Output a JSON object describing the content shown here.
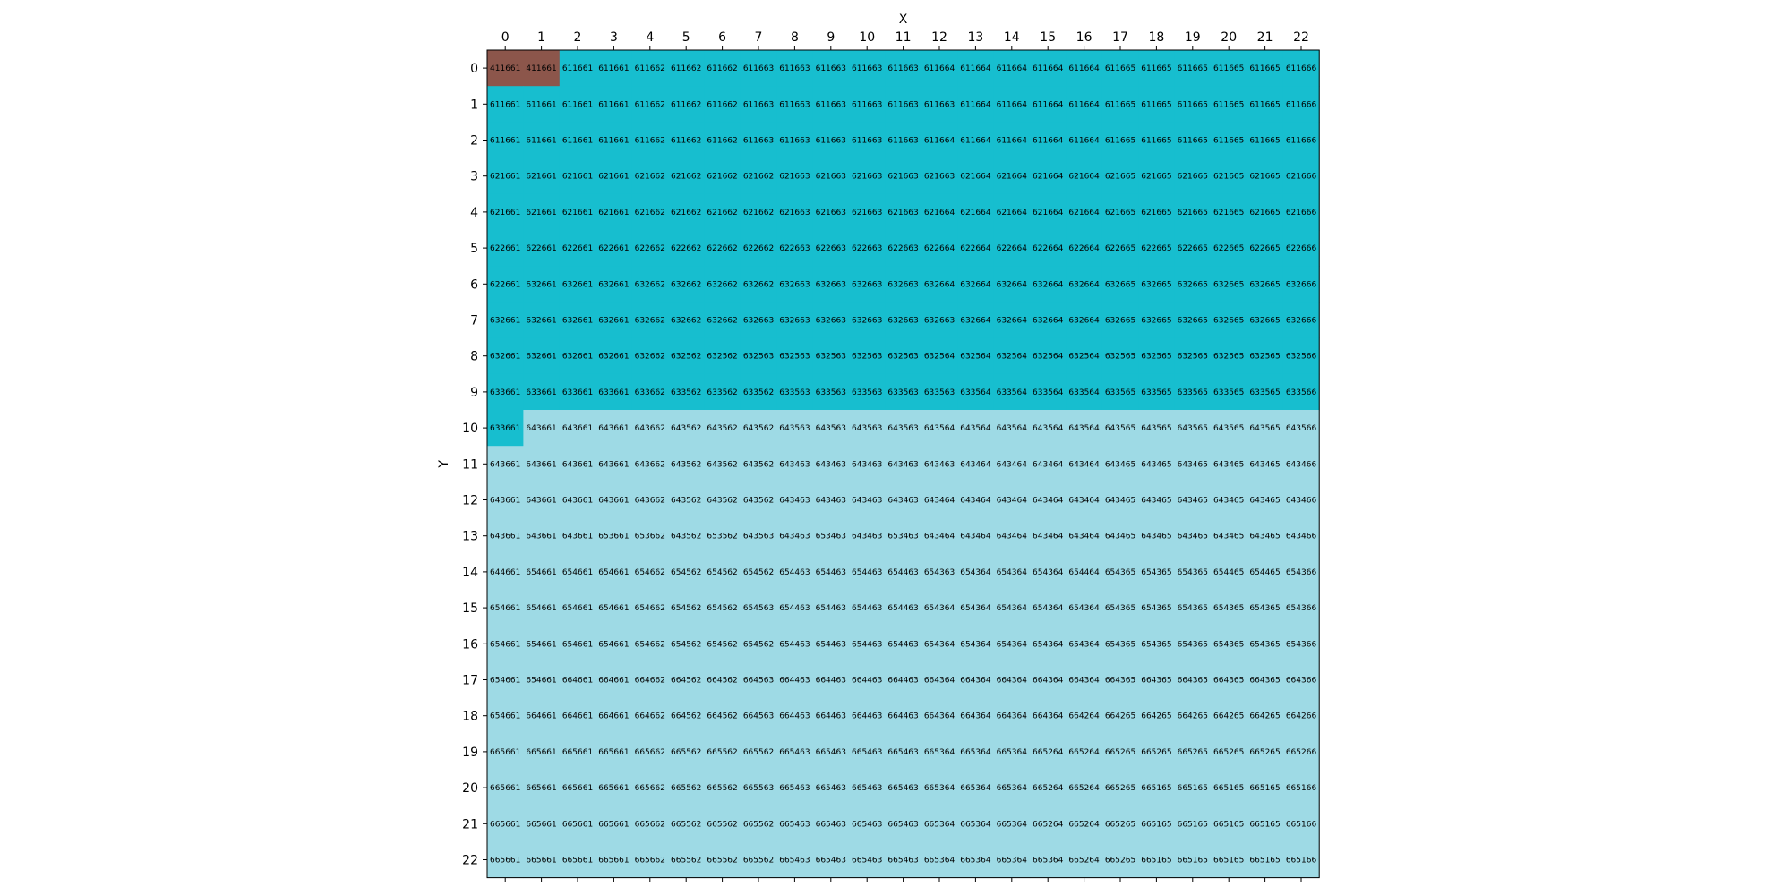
{
  "chart_data": {
    "type": "heatmap",
    "title": "",
    "xlabel": "X",
    "ylabel": "Y",
    "x_ticks": [
      0,
      1,
      2,
      3,
      4,
      5,
      6,
      7,
      8,
      9,
      10,
      11,
      12,
      13,
      14,
      15,
      16,
      17,
      18,
      19,
      20,
      21,
      22
    ],
    "y_ticks": [
      0,
      1,
      2,
      3,
      4,
      5,
      6,
      7,
      8,
      9,
      10,
      11,
      12,
      13,
      14,
      15,
      16,
      17,
      18,
      19,
      20,
      21,
      22
    ],
    "x_axis_position": "top",
    "y_axis_inverted": true,
    "grid": false,
    "colors": {
      "4": "#8c564b",
      "6": "#17becf",
      "6_light": "#9edae5"
    },
    "values": [
      [
        "411661",
        "411661",
        "611661",
        "611661",
        "611662",
        "611662",
        "611662",
        "611663",
        "611663",
        "611663",
        "611663",
        "611663",
        "611664",
        "611664",
        "611664",
        "611664",
        "611664",
        "611665",
        "611665",
        "611665",
        "611665",
        "611665",
        "611666"
      ],
      [
        "611661",
        "611661",
        "611661",
        "611661",
        "611662",
        "611662",
        "611662",
        "611663",
        "611663",
        "611663",
        "611663",
        "611663",
        "611663",
        "611664",
        "611664",
        "611664",
        "611664",
        "611665",
        "611665",
        "611665",
        "611665",
        "611665",
        "611666"
      ],
      [
        "611661",
        "611661",
        "611661",
        "611661",
        "611662",
        "611662",
        "611662",
        "611663",
        "611663",
        "611663",
        "611663",
        "611663",
        "611664",
        "611664",
        "611664",
        "611664",
        "611664",
        "611665",
        "611665",
        "611665",
        "611665",
        "611665",
        "611666"
      ],
      [
        "621661",
        "621661",
        "621661",
        "621661",
        "621662",
        "621662",
        "621662",
        "621662",
        "621663",
        "621663",
        "621663",
        "621663",
        "621663",
        "621664",
        "621664",
        "621664",
        "621664",
        "621665",
        "621665",
        "621665",
        "621665",
        "621665",
        "621666"
      ],
      [
        "621661",
        "621661",
        "621661",
        "621661",
        "621662",
        "621662",
        "621662",
        "621662",
        "621663",
        "621663",
        "621663",
        "621663",
        "621664",
        "621664",
        "621664",
        "621664",
        "621664",
        "621665",
        "621665",
        "621665",
        "621665",
        "621665",
        "621666"
      ],
      [
        "622661",
        "622661",
        "622661",
        "622661",
        "622662",
        "622662",
        "622662",
        "622662",
        "622663",
        "622663",
        "622663",
        "622663",
        "622664",
        "622664",
        "622664",
        "622664",
        "622664",
        "622665",
        "622665",
        "622665",
        "622665",
        "622665",
        "622666"
      ],
      [
        "622661",
        "632661",
        "632661",
        "632661",
        "632662",
        "632662",
        "632662",
        "632662",
        "632663",
        "632663",
        "632663",
        "632663",
        "632664",
        "632664",
        "632664",
        "632664",
        "632664",
        "632665",
        "632665",
        "632665",
        "632665",
        "632665",
        "632666"
      ],
      [
        "632661",
        "632661",
        "632661",
        "632661",
        "632662",
        "632662",
        "632662",
        "632663",
        "632663",
        "632663",
        "632663",
        "632663",
        "632663",
        "632664",
        "632664",
        "632664",
        "632664",
        "632665",
        "632665",
        "632665",
        "632665",
        "632665",
        "632666"
      ],
      [
        "632661",
        "632661",
        "632661",
        "632661",
        "632662",
        "632562",
        "632562",
        "632563",
        "632563",
        "632563",
        "632563",
        "632563",
        "632564",
        "632564",
        "632564",
        "632564",
        "632564",
        "632565",
        "632565",
        "632565",
        "632565",
        "632565",
        "632566"
      ],
      [
        "633661",
        "633661",
        "633661",
        "633661",
        "633662",
        "633562",
        "633562",
        "633562",
        "633563",
        "633563",
        "633563",
        "633563",
        "633563",
        "633564",
        "633564",
        "633564",
        "633564",
        "633565",
        "633565",
        "633565",
        "633565",
        "633565",
        "633566"
      ],
      [
        "633661",
        "643661",
        "643661",
        "643661",
        "643662",
        "643562",
        "643562",
        "643562",
        "643563",
        "643563",
        "643563",
        "643563",
        "643564",
        "643564",
        "643564",
        "643564",
        "643564",
        "643565",
        "643565",
        "643565",
        "643565",
        "643565",
        "643566"
      ],
      [
        "643661",
        "643661",
        "643661",
        "643661",
        "643662",
        "643562",
        "643562",
        "643562",
        "643463",
        "643463",
        "643463",
        "643463",
        "643463",
        "643464",
        "643464",
        "643464",
        "643464",
        "643465",
        "643465",
        "643465",
        "643465",
        "643465",
        "643466"
      ],
      [
        "643661",
        "643661",
        "643661",
        "643661",
        "643662",
        "643562",
        "643562",
        "643562",
        "643463",
        "643463",
        "643463",
        "643463",
        "643464",
        "643464",
        "643464",
        "643464",
        "643464",
        "643465",
        "643465",
        "643465",
        "643465",
        "643465",
        "643466"
      ],
      [
        "643661",
        "643661",
        "643661",
        "653661",
        "653662",
        "643562",
        "653562",
        "643563",
        "643463",
        "653463",
        "643463",
        "653463",
        "643464",
        "643464",
        "643464",
        "643464",
        "643464",
        "643465",
        "643465",
        "643465",
        "643465",
        "643465",
        "643466"
      ],
      [
        "644661",
        "654661",
        "654661",
        "654661",
        "654662",
        "654562",
        "654562",
        "654562",
        "654463",
        "654463",
        "654463",
        "654463",
        "654363",
        "654364",
        "654364",
        "654364",
        "654464",
        "654365",
        "654365",
        "654365",
        "654465",
        "654465",
        "654366"
      ],
      [
        "654661",
        "654661",
        "654661",
        "654661",
        "654662",
        "654562",
        "654562",
        "654563",
        "654463",
        "654463",
        "654463",
        "654463",
        "654364",
        "654364",
        "654364",
        "654364",
        "654364",
        "654365",
        "654365",
        "654365",
        "654365",
        "654365",
        "654366"
      ],
      [
        "654661",
        "654661",
        "654661",
        "654661",
        "654662",
        "654562",
        "654562",
        "654562",
        "654463",
        "654463",
        "654463",
        "654463",
        "654364",
        "654364",
        "654364",
        "654364",
        "654364",
        "654365",
        "654365",
        "654365",
        "654365",
        "654365",
        "654366"
      ],
      [
        "654661",
        "654661",
        "664661",
        "664661",
        "664662",
        "664562",
        "664562",
        "664563",
        "664463",
        "664463",
        "664463",
        "664463",
        "664364",
        "664364",
        "664364",
        "664364",
        "664364",
        "664365",
        "664365",
        "664365",
        "664365",
        "664365",
        "664366"
      ],
      [
        "654661",
        "664661",
        "664661",
        "664661",
        "664662",
        "664562",
        "664562",
        "664563",
        "664463",
        "664463",
        "664463",
        "664463",
        "664364",
        "664364",
        "664364",
        "664364",
        "664264",
        "664265",
        "664265",
        "664265",
        "664265",
        "664265",
        "664266"
      ],
      [
        "665661",
        "665661",
        "665661",
        "665661",
        "665662",
        "665562",
        "665562",
        "665562",
        "665463",
        "665463",
        "665463",
        "665463",
        "665364",
        "665364",
        "665364",
        "665264",
        "665264",
        "665265",
        "665265",
        "665265",
        "665265",
        "665265",
        "665266"
      ],
      [
        "665661",
        "665661",
        "665661",
        "665661",
        "665662",
        "665562",
        "665562",
        "665563",
        "665463",
        "665463",
        "665463",
        "665463",
        "665364",
        "665364",
        "665364",
        "665264",
        "665264",
        "665265",
        "665165",
        "665165",
        "665165",
        "665165",
        "665166"
      ],
      [
        "665661",
        "665661",
        "665661",
        "665661",
        "665662",
        "665562",
        "665562",
        "665562",
        "665463",
        "665463",
        "665463",
        "665463",
        "665364",
        "665364",
        "665364",
        "665264",
        "665264",
        "665265",
        "665165",
        "665165",
        "665165",
        "665165",
        "665166"
      ],
      [
        "665661",
        "665661",
        "665661",
        "665661",
        "665662",
        "665562",
        "665562",
        "665562",
        "665463",
        "665463",
        "665463",
        "665463",
        "665364",
        "665364",
        "665364",
        "665364",
        "665264",
        "665265",
        "665165",
        "665165",
        "665165",
        "665165",
        "665166"
      ]
    ]
  }
}
